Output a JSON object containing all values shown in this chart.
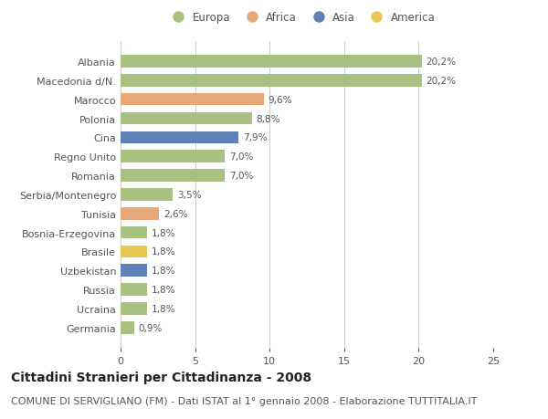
{
  "categories": [
    "Albania",
    "Macedonia d/N.",
    "Marocco",
    "Polonia",
    "Cina",
    "Regno Unito",
    "Romania",
    "Serbia/Montenegro",
    "Tunisia",
    "Bosnia-Erzegovina",
    "Brasile",
    "Uzbekistan",
    "Russia",
    "Ucraina",
    "Germania"
  ],
  "values": [
    20.2,
    20.2,
    9.6,
    8.8,
    7.9,
    7.0,
    7.0,
    3.5,
    2.6,
    1.8,
    1.8,
    1.8,
    1.8,
    1.8,
    0.9
  ],
  "labels": [
    "20,2%",
    "20,2%",
    "9,6%",
    "8,8%",
    "7,9%",
    "7,0%",
    "7,0%",
    "3,5%",
    "2,6%",
    "1,8%",
    "1,8%",
    "1,8%",
    "1,8%",
    "1,8%",
    "0,9%"
  ],
  "continents": [
    "Europa",
    "Europa",
    "Africa",
    "Europa",
    "Asia",
    "Europa",
    "Europa",
    "Europa",
    "Africa",
    "Europa",
    "America",
    "Asia",
    "Europa",
    "Europa",
    "Europa"
  ],
  "continent_colors": {
    "Europa": "#a8c080",
    "Africa": "#e8a878",
    "Asia": "#6080b8",
    "America": "#e8c850"
  },
  "legend_items": [
    "Europa",
    "Africa",
    "Asia",
    "America"
  ],
  "xlim": [
    0,
    25
  ],
  "xticks": [
    0,
    5,
    10,
    15,
    20,
    25
  ],
  "title": "Cittadini Stranieri per Cittadinanza - 2008",
  "subtitle": "COMUNE DI SERVIGLIANO (FM) - Dati ISTAT al 1° gennaio 2008 - Elaborazione TUTTITALIA.IT",
  "bg_color": "#ffffff",
  "grid_color": "#cccccc",
  "bar_height": 0.65,
  "title_fontsize": 10,
  "subtitle_fontsize": 8,
  "label_fontsize": 7.5,
  "tick_fontsize": 8,
  "legend_fontsize": 8.5
}
